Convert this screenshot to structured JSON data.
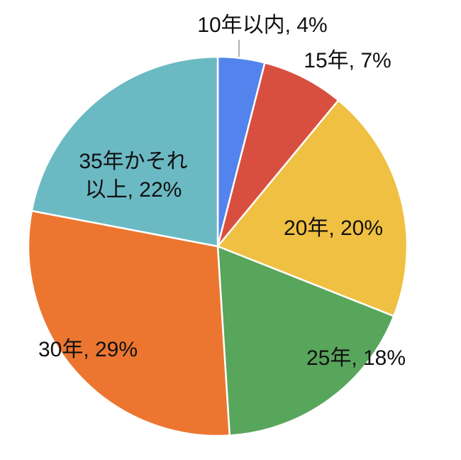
{
  "chart_data": {
    "type": "pie",
    "values": [
      4,
      7,
      20,
      18,
      29,
      22
    ],
    "value_labels": [
      "10年以内, 4%",
      "15年, 7%",
      "20年, 20%",
      "25年, 18%",
      "30年, 29%",
      "35年かそれ以上, 22%"
    ],
    "colors": [
      "#5384ed",
      "#d94f3f",
      "#f0c042",
      "#58a55c",
      "#ec7630",
      "#6bb9c3"
    ]
  }
}
